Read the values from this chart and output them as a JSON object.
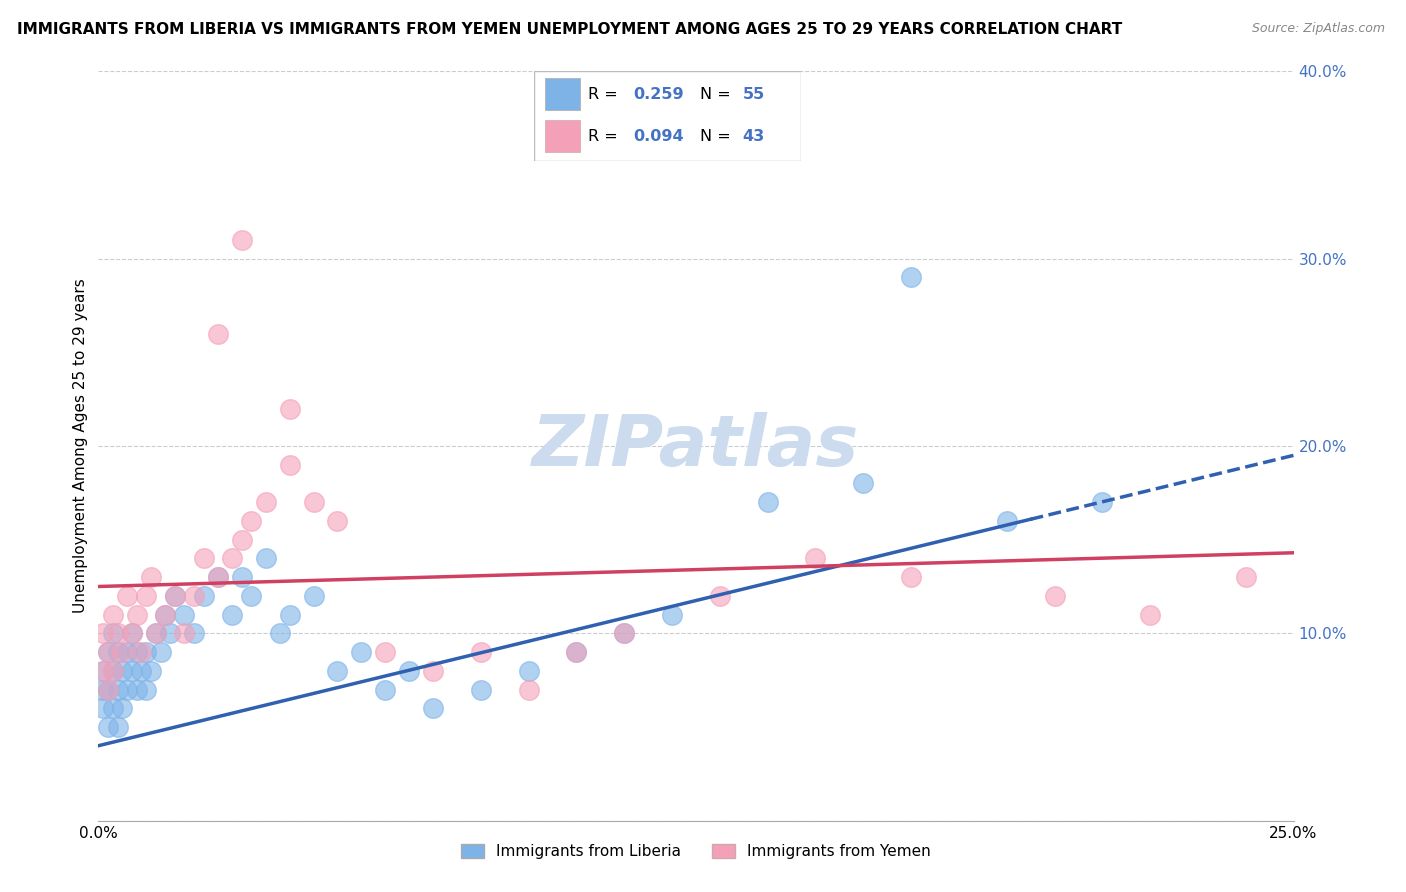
{
  "title": "IMMIGRANTS FROM LIBERIA VS IMMIGRANTS FROM YEMEN UNEMPLOYMENT AMONG AGES 25 TO 29 YEARS CORRELATION CHART",
  "source": "Source: ZipAtlas.com",
  "ylabel": "Unemployment Among Ages 25 to 29 years",
  "xlim": [
    0,
    0.25
  ],
  "ylim": [
    0,
    0.4
  ],
  "liberia_R": 0.259,
  "liberia_N": 55,
  "yemen_R": 0.094,
  "yemen_N": 43,
  "liberia_color": "#7eb3e8",
  "liberia_line_color": "#3060b0",
  "yemen_color": "#f4a0b8",
  "yemen_line_color": "#d04060",
  "watermark_text": "ZIPatlas",
  "watermark_color": "#ccdcee",
  "background_color": "#ffffff",
  "grid_color": "#cccccc",
  "title_fontsize": 11,
  "axis_label_fontsize": 11,
  "tick_fontsize": 11,
  "right_tick_color": "#4472c4",
  "legend_label_liberia": "Immigrants from Liberia",
  "legend_label_yemen": "Immigrants from Yemen",
  "lib_line_x0": 0.0,
  "lib_line_y0": 0.04,
  "lib_line_x1": 0.25,
  "lib_line_y1": 0.195,
  "lib_line_solid_end": 0.195,
  "yem_line_x0": 0.0,
  "yem_line_y0": 0.125,
  "yem_line_x1": 0.25,
  "yem_line_y1": 0.143,
  "liberia_x": [
    0.001,
    0.001,
    0.001,
    0.002,
    0.002,
    0.002,
    0.003,
    0.003,
    0.003,
    0.004,
    0.004,
    0.004,
    0.005,
    0.005,
    0.006,
    0.006,
    0.007,
    0.007,
    0.008,
    0.008,
    0.009,
    0.01,
    0.01,
    0.011,
    0.012,
    0.013,
    0.014,
    0.015,
    0.016,
    0.018,
    0.02,
    0.022,
    0.025,
    0.028,
    0.03,
    0.032,
    0.035,
    0.038,
    0.04,
    0.045,
    0.05,
    0.055,
    0.06,
    0.065,
    0.07,
    0.08,
    0.09,
    0.1,
    0.11,
    0.12,
    0.14,
    0.16,
    0.17,
    0.19,
    0.21
  ],
  "liberia_y": [
    0.06,
    0.07,
    0.08,
    0.05,
    0.07,
    0.09,
    0.06,
    0.08,
    0.1,
    0.05,
    0.07,
    0.09,
    0.06,
    0.08,
    0.07,
    0.09,
    0.08,
    0.1,
    0.07,
    0.09,
    0.08,
    0.07,
    0.09,
    0.08,
    0.1,
    0.09,
    0.11,
    0.1,
    0.12,
    0.11,
    0.1,
    0.12,
    0.13,
    0.11,
    0.13,
    0.12,
    0.14,
    0.1,
    0.11,
    0.12,
    0.08,
    0.09,
    0.07,
    0.08,
    0.06,
    0.07,
    0.08,
    0.09,
    0.1,
    0.11,
    0.17,
    0.18,
    0.29,
    0.16,
    0.17
  ],
  "yemen_x": [
    0.001,
    0.001,
    0.002,
    0.002,
    0.003,
    0.003,
    0.004,
    0.005,
    0.006,
    0.007,
    0.008,
    0.009,
    0.01,
    0.011,
    0.012,
    0.014,
    0.016,
    0.018,
    0.02,
    0.022,
    0.025,
    0.028,
    0.03,
    0.032,
    0.035,
    0.04,
    0.045,
    0.05,
    0.06,
    0.07,
    0.08,
    0.09,
    0.1,
    0.11,
    0.13,
    0.15,
    0.17,
    0.2,
    0.22,
    0.24,
    0.03,
    0.025,
    0.04
  ],
  "yemen_y": [
    0.08,
    0.1,
    0.07,
    0.09,
    0.08,
    0.11,
    0.1,
    0.09,
    0.12,
    0.1,
    0.11,
    0.09,
    0.12,
    0.13,
    0.1,
    0.11,
    0.12,
    0.1,
    0.12,
    0.14,
    0.13,
    0.14,
    0.15,
    0.16,
    0.17,
    0.19,
    0.17,
    0.16,
    0.09,
    0.08,
    0.09,
    0.07,
    0.09,
    0.1,
    0.12,
    0.14,
    0.13,
    0.12,
    0.11,
    0.13,
    0.31,
    0.26,
    0.22
  ]
}
